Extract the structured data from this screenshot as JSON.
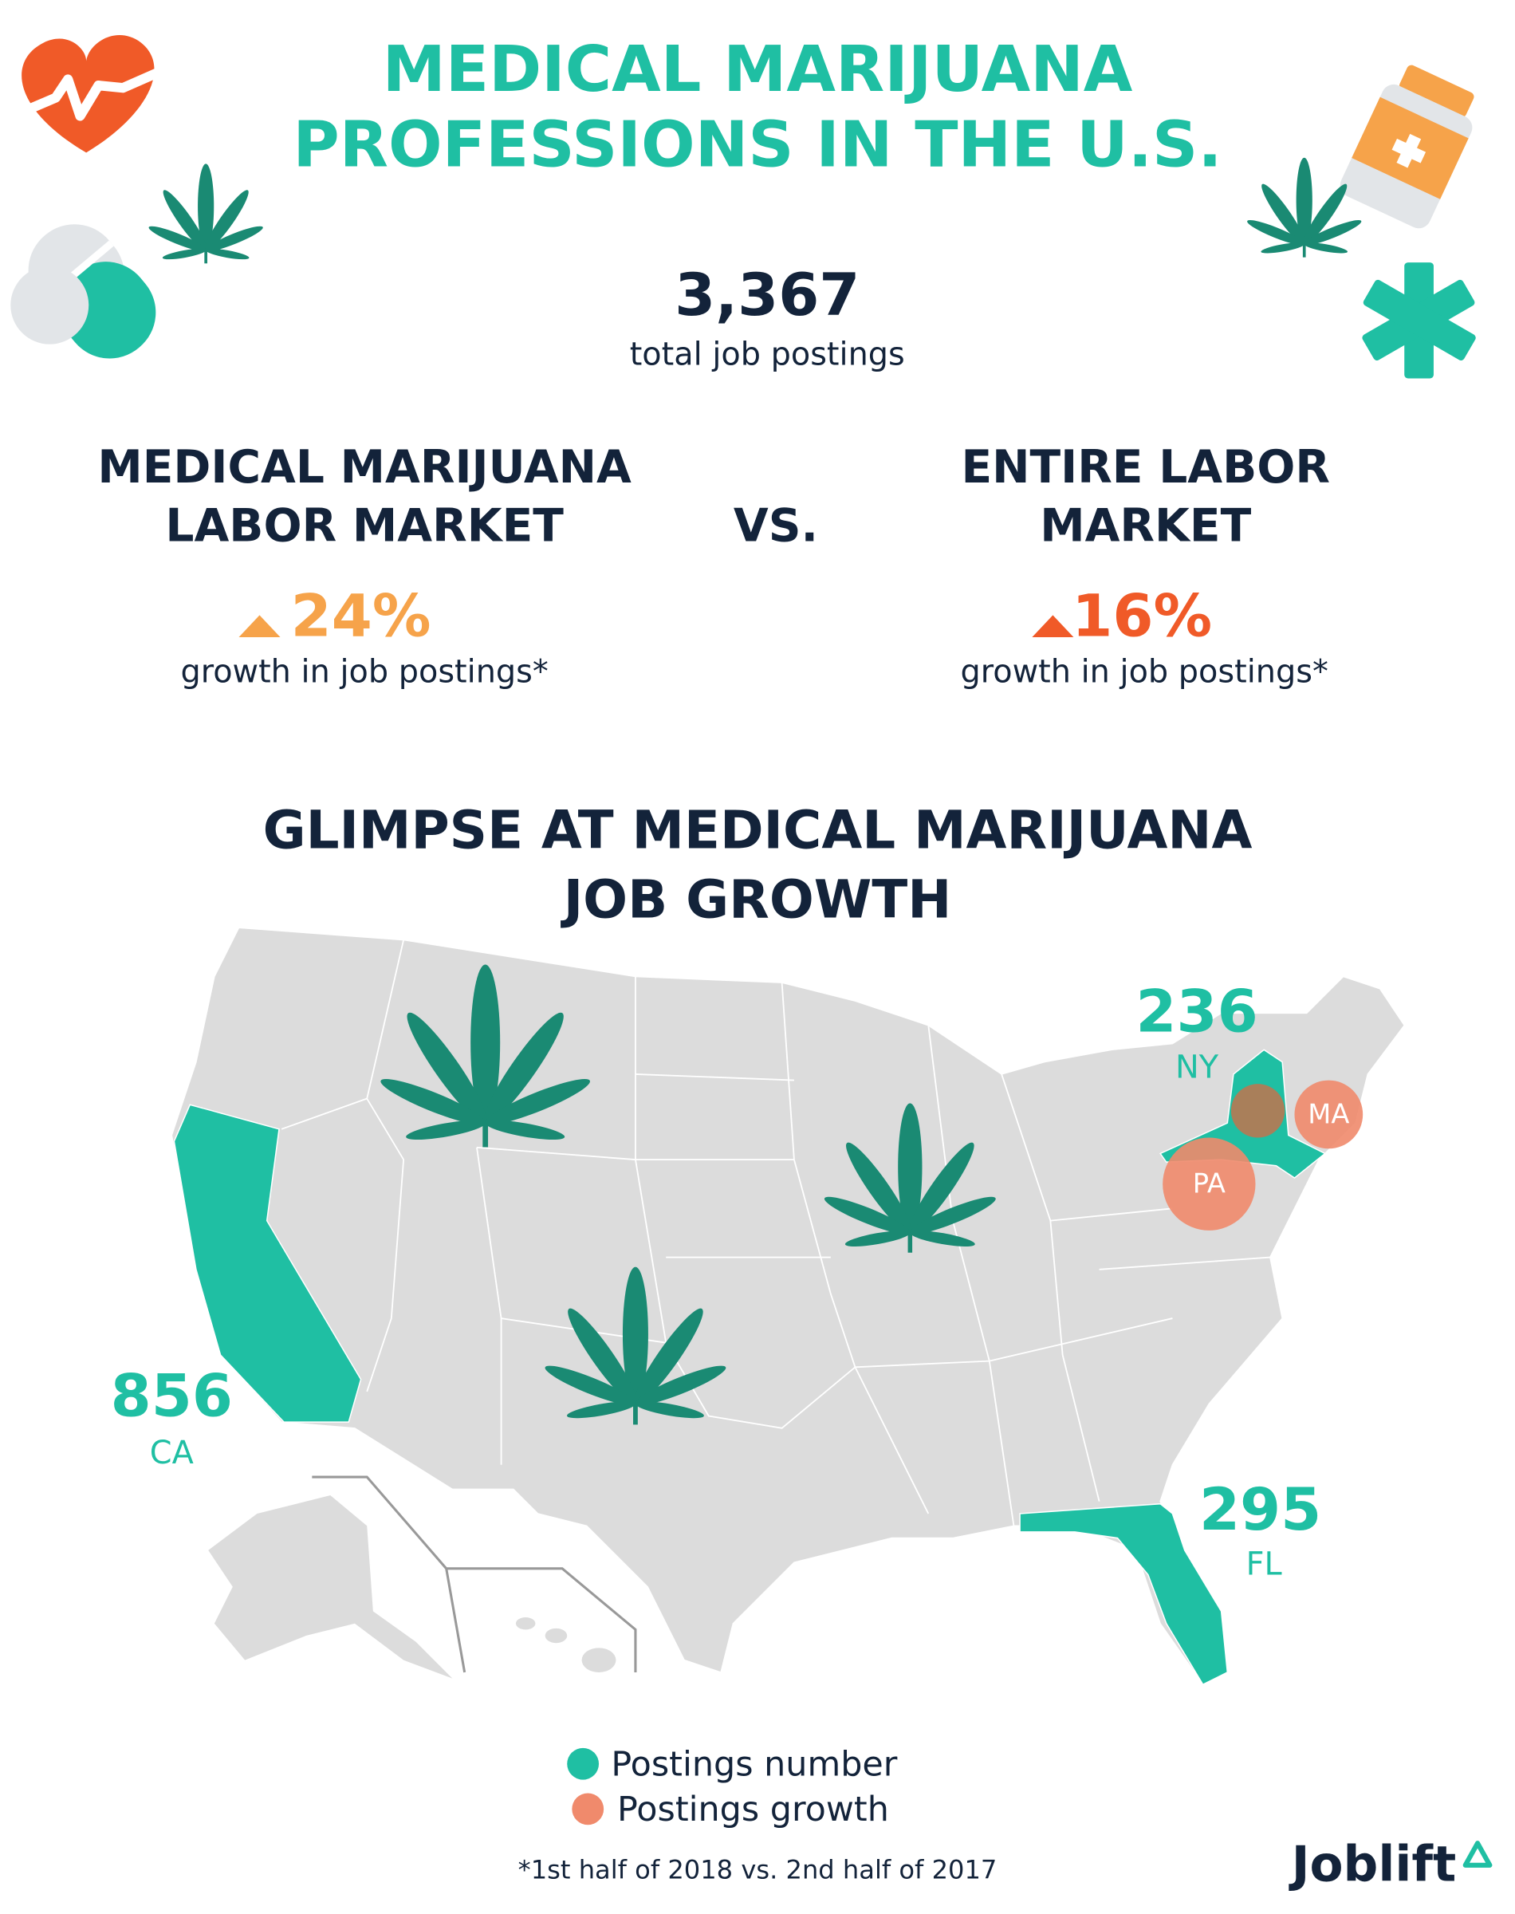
{
  "header": {
    "title_lines": [
      "MEDICAL MARIJUANA",
      "PROFESSIONS IN THE U.S."
    ]
  },
  "total": {
    "value": "3,367",
    "label": "total job postings"
  },
  "comparison": {
    "left": {
      "title_lines": [
        "MEDICAL MARIJUANA",
        "LABOR MARKET"
      ],
      "growth": "24%",
      "caption": "growth in job postings*"
    },
    "separator": "VS.",
    "right": {
      "title_lines": [
        "ENTIRE LABOR",
        "MARKET"
      ],
      "growth": "16%",
      "caption": "growth in job postings*"
    }
  },
  "map": {
    "title_lines": [
      "GLIMPSE AT MEDICAL MARIJUANA",
      "JOB GROWTH"
    ],
    "states": [
      {
        "value": "236",
        "label": "NY"
      },
      {
        "value": "856",
        "label": "CA"
      },
      {
        "value": "295",
        "label": "FL"
      }
    ],
    "growth_markers": [
      "MA",
      "PA"
    ]
  },
  "legend": [
    "Postings number",
    "Postings growth"
  ],
  "footnote": "*1st half of 2018 vs. 2nd half of 2017",
  "logo": "Joblift"
}
